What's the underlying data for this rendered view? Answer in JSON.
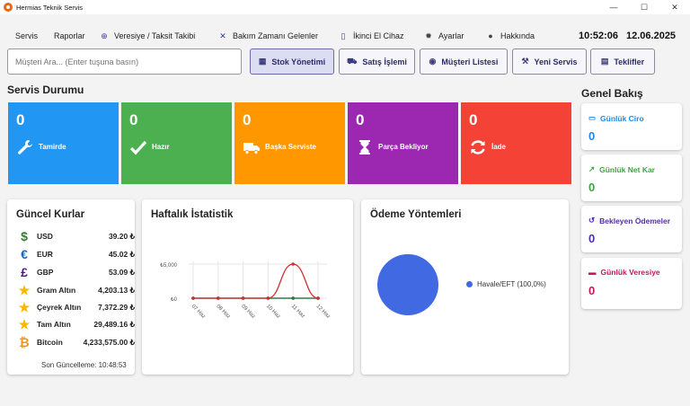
{
  "window": {
    "title": "Hermias Teknik Servis",
    "minimize": "—",
    "maximize": "☐",
    "close": "✕"
  },
  "menu": {
    "service": "Servis",
    "reports": "Raporlar",
    "credit": "Veresiye / Taksit Takibi",
    "maintenance": "Bakım Zamanı Gelenler",
    "second_hand": "İkinci El Cihaz",
    "settings": "Ayarlar",
    "about": "Hakkında",
    "time": "10:52:06",
    "date": "12.06.2025"
  },
  "toolbar": {
    "search_placeholder": "Müşteri Ara... (Enter tuşuna basın)",
    "stock": "Stok Yönetimi",
    "sales": "Satış İşlemi",
    "customers": "Müşteri Listesi",
    "new_service": "Yeni Servis",
    "offers": "Teklifler"
  },
  "service_status": {
    "title": "Servis Durumu",
    "tiles": [
      {
        "label": "Tamirde",
        "count": "0",
        "color": "#2196f3",
        "icon": "wrench-icon"
      },
      {
        "label": "Hazır",
        "count": "0",
        "color": "#4caf50",
        "icon": "check-icon"
      },
      {
        "label": "Başka Serviste",
        "count": "0",
        "color": "#ff9800",
        "icon": "truck-icon"
      },
      {
        "label": "Parça Bekliyor",
        "count": "0",
        "color": "#9c27b0",
        "icon": "hourglass-icon"
      },
      {
        "label": "İade",
        "count": "0",
        "color": "#f44336",
        "icon": "refresh-icon"
      }
    ]
  },
  "rates": {
    "title": "Güncel Kurlar",
    "items": [
      {
        "name": "USD",
        "value": "39.20 ₺",
        "icon": "dollar-icon",
        "color": "#2e7d32"
      },
      {
        "name": "EUR",
        "value": "45.02 ₺",
        "icon": "euro-icon",
        "color": "#1565c0"
      },
      {
        "name": "GBP",
        "value": "53.09 ₺",
        "icon": "pound-icon",
        "color": "#4a148c"
      },
      {
        "name": "Gram Altın",
        "value": "4,203.13 ₺",
        "icon": "star-icon",
        "color": "#f9b700"
      },
      {
        "name": "Çeyrek Altın",
        "value": "7,372.29 ₺",
        "icon": "star-icon",
        "color": "#f9b700"
      },
      {
        "name": "Tam Altın",
        "value": "29,489.16 ₺",
        "icon": "star-icon",
        "color": "#f9b700"
      },
      {
        "name": "Bitcoin",
        "value": "4,233,575.00 ₺",
        "icon": "bitcoin-icon",
        "color": "#f7931a"
      }
    ],
    "last_update": "Son Güncelleme: 10:48:53"
  },
  "weekly": {
    "title": "Haftalık İstatistik",
    "chart_data": {
      "type": "line",
      "categories": [
        "07 Haz",
        "08 Haz",
        "09 Haz",
        "10 Haz",
        "11 Haz",
        "12 Haz"
      ],
      "y_ticks": [
        "₺5,000",
        "₺0"
      ],
      "ylim": [
        0,
        5000
      ],
      "series": [
        {
          "color": "#d32f2f",
          "values": [
            0,
            0,
            0,
            0,
            5000,
            0
          ]
        },
        {
          "color": "#2e7d32",
          "values": [
            0,
            0,
            0,
            0,
            0,
            0
          ]
        },
        {
          "color": "#3949ab",
          "values": [
            0,
            0,
            0,
            0,
            0,
            0
          ]
        }
      ],
      "grid": true
    }
  },
  "payments": {
    "title": "Ödeme Yöntemleri",
    "chart_data": {
      "type": "pie",
      "slices": [
        {
          "label": "Havale/EFT (100,0%)",
          "value": 100,
          "color": "#4169e1"
        }
      ]
    }
  },
  "overview": {
    "title": "Genel Bakış",
    "cards": [
      {
        "label": "Günlük Ciro",
        "value": "0",
        "color": "#1e88e5",
        "icon": "cash-icon"
      },
      {
        "label": "Günlük Net Kar",
        "value": "0",
        "color": "#43a047",
        "icon": "chart-up-icon"
      },
      {
        "label": "Bekleyen Ödemeler",
        "value": "0",
        "color": "#512da8",
        "icon": "history-icon"
      },
      {
        "label": "Günlük Veresiye",
        "value": "0",
        "color": "#c2185b",
        "icon": "credit-card-icon"
      }
    ]
  }
}
